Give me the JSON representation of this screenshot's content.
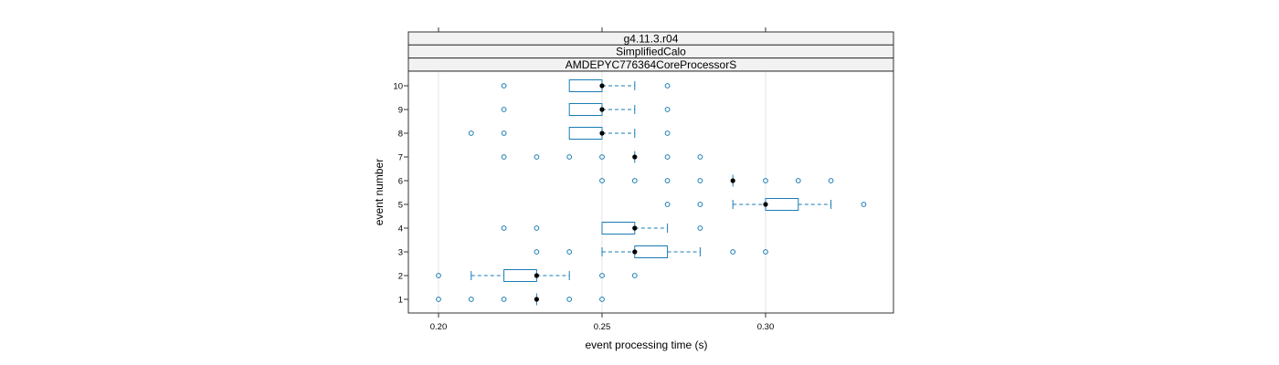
{
  "chart_data": {
    "type": "boxplot",
    "strips": [
      "g4.11.3.r04",
      "SimplifiedCalo",
      "AMDEPYC776364CoreProcessorS"
    ],
    "xlabel": "event processing time (s)",
    "ylabel": "event number",
    "xlim": [
      0.19,
      0.33
    ],
    "x_ticks": [
      {
        "value": 0.2,
        "label": "0.20"
      },
      {
        "value": 0.25,
        "label": "0.25"
      },
      {
        "value": 0.3,
        "label": "0.30"
      }
    ],
    "categories": [
      "1",
      "2",
      "3",
      "4",
      "5",
      "6",
      "7",
      "8",
      "9",
      "10"
    ],
    "grid": true,
    "colors": {
      "box": "#1a7cb4",
      "outlier": "#1a7cb4",
      "median": "#000000",
      "strip_bg": "#f2f2f2",
      "grid": "#e6e6e6"
    },
    "boxes": [
      {
        "event": 1,
        "whisker_low": 0.23,
        "q1": 0.23,
        "median": 0.23,
        "q3": 0.23,
        "whisker_high": 0.23,
        "outliers": [
          0.2,
          0.21,
          0.22,
          0.24,
          0.25
        ]
      },
      {
        "event": 2,
        "whisker_low": 0.21,
        "q1": 0.22,
        "median": 0.23,
        "q3": 0.23,
        "whisker_high": 0.24,
        "outliers": [
          0.2,
          0.25,
          0.26
        ]
      },
      {
        "event": 3,
        "whisker_low": 0.25,
        "q1": 0.26,
        "median": 0.26,
        "q3": 0.27,
        "whisker_high": 0.28,
        "outliers": [
          0.23,
          0.24,
          0.29,
          0.3
        ]
      },
      {
        "event": 4,
        "whisker_low": 0.25,
        "q1": 0.25,
        "median": 0.26,
        "q3": 0.26,
        "whisker_high": 0.27,
        "outliers": [
          0.22,
          0.23,
          0.28
        ]
      },
      {
        "event": 5,
        "whisker_low": 0.29,
        "q1": 0.3,
        "median": 0.3,
        "q3": 0.31,
        "whisker_high": 0.32,
        "outliers": [
          0.27,
          0.28,
          0.33
        ]
      },
      {
        "event": 6,
        "whisker_low": 0.29,
        "q1": 0.29,
        "median": 0.29,
        "q3": 0.29,
        "whisker_high": 0.29,
        "outliers": [
          0.25,
          0.26,
          0.27,
          0.28,
          0.3,
          0.31,
          0.32
        ]
      },
      {
        "event": 7,
        "whisker_low": 0.26,
        "q1": 0.26,
        "median": 0.26,
        "q3": 0.26,
        "whisker_high": 0.26,
        "outliers": [
          0.22,
          0.23,
          0.24,
          0.25,
          0.27,
          0.28
        ]
      },
      {
        "event": 8,
        "whisker_low": 0.24,
        "q1": 0.24,
        "median": 0.25,
        "q3": 0.25,
        "whisker_high": 0.26,
        "outliers": [
          0.21,
          0.22,
          0.27
        ]
      },
      {
        "event": 9,
        "whisker_low": 0.24,
        "q1": 0.24,
        "median": 0.25,
        "q3": 0.25,
        "whisker_high": 0.26,
        "outliers": [
          0.22,
          0.27
        ]
      },
      {
        "event": 10,
        "whisker_low": 0.24,
        "q1": 0.24,
        "median": 0.25,
        "q3": 0.25,
        "whisker_high": 0.26,
        "outliers": [
          0.22,
          0.27
        ]
      }
    ]
  }
}
